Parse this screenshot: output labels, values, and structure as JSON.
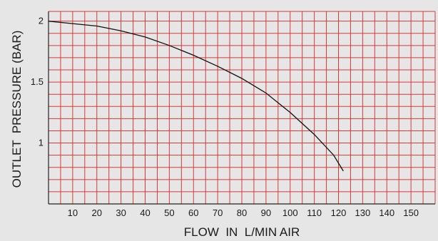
{
  "chart_data": {
    "type": "line",
    "title": "",
    "xlabel": "FLOW  IN  L/MIN AIR",
    "ylabel": "OUTLET  PRESSURE (BAR)",
    "xlim": [
      0,
      160
    ],
    "ylim": [
      0.5,
      2.08
    ],
    "x_ticks": [
      10,
      20,
      30,
      40,
      50,
      60,
      70,
      80,
      90,
      100,
      110,
      120,
      130,
      140,
      150
    ],
    "x_tick_labels": [
      "10",
      "20",
      "30",
      "40",
      "50",
      "60",
      "70",
      "80",
      "90",
      "100",
      "110",
      "120",
      "130",
      "140",
      "150"
    ],
    "y_ticks": [
      2,
      1.5,
      1
    ],
    "y_tick_labels": [
      "2",
      "1.5",
      "1"
    ],
    "x_grid_step": 5,
    "y_grid_step": 0.1,
    "grid": true,
    "colors": {
      "grid": "#d63a3a",
      "line": "#111111",
      "background": "#e6e6e6"
    },
    "series": [
      {
        "x": [
          0,
          10,
          20,
          30,
          40,
          50,
          60,
          70,
          80,
          90,
          100,
          110,
          118,
          122
        ],
        "values": [
          2.0,
          1.98,
          1.96,
          1.92,
          1.87,
          1.8,
          1.72,
          1.63,
          1.53,
          1.41,
          1.25,
          1.07,
          0.9,
          0.77
        ]
      }
    ]
  }
}
